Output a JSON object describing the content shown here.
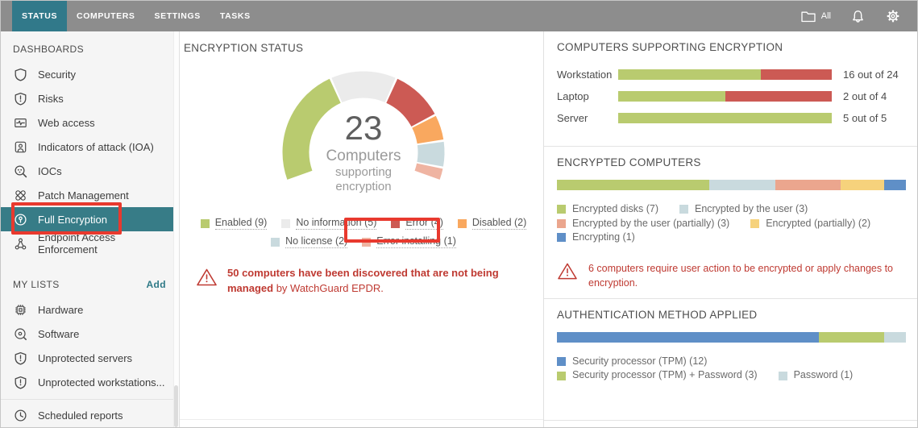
{
  "topbar": {
    "tabs": [
      {
        "label": "STATUS",
        "active": true
      },
      {
        "label": "COMPUTERS",
        "active": false
      },
      {
        "label": "SETTINGS",
        "active": false
      },
      {
        "label": "TASKS",
        "active": false
      }
    ],
    "filter": {
      "icon": "folder",
      "label": "All"
    },
    "notifications_icon": "bell",
    "settings_icon": "gear"
  },
  "sidebar": {
    "sections": [
      {
        "header": "DASHBOARDS",
        "items": [
          {
            "label": "Security",
            "icon": "shield"
          },
          {
            "label": "Risks",
            "icon": "shield-exclamation"
          },
          {
            "label": "Web access",
            "icon": "monitor-pulse"
          },
          {
            "label": "Indicators of attack (IOA)",
            "icon": "person-badge"
          },
          {
            "label": "IOCs",
            "icon": "magnifier-dots"
          },
          {
            "label": "Patch Management",
            "icon": "crossed-bandages"
          },
          {
            "label": "Full Encryption",
            "icon": "disk-lock",
            "selected": true
          },
          {
            "label": "Endpoint Access Enforcement",
            "icon": "network-nodes"
          }
        ]
      },
      {
        "header": "MY LISTS",
        "action": "Add",
        "items": [
          {
            "label": "Hardware",
            "icon": "cpu-chip"
          },
          {
            "label": "Software",
            "icon": "disc"
          },
          {
            "label": "Unprotected servers",
            "icon": "shield-exclamation"
          },
          {
            "label": "Unprotected workstations...",
            "icon": "shield-exclamation"
          },
          {
            "label": "Scheduled reports",
            "icon": "clock"
          }
        ]
      }
    ]
  },
  "panels": {
    "encryption_status": {
      "title": "ENCRYPTION STATUS",
      "warning": {
        "bold": "50 computers have been discovered that are not being managed",
        "rest": " by WatchGuard EPDR."
      }
    },
    "computers_supporting": {
      "title": "COMPUTERS SUPPORTING ENCRYPTION"
    },
    "encrypted_computers": {
      "title": "ENCRYPTED COMPUTERS",
      "warning": "6 computers require user action to be encrypted or apply changes to encryption."
    },
    "auth_method": {
      "title": "AUTHENTICATION METHOD APPLIED"
    }
  },
  "chart_data": [
    {
      "type": "donut",
      "title": "ENCRYPTION STATUS",
      "center_value": "23",
      "center_label": [
        "Computers",
        "supporting",
        "encryption"
      ],
      "total": 23,
      "start_angle": 249.5,
      "sweep": 221,
      "segments": [
        {
          "label": "Enabled",
          "value": 9,
          "display": "Enabled (9)",
          "color": "#b9cb6f"
        },
        {
          "label": "No information",
          "value": 5,
          "display": "No information (5)",
          "color": "#ebebeb"
        },
        {
          "label": "Error",
          "value": 4,
          "display": "Error (4)",
          "color": "#cc5a54"
        },
        {
          "label": "Disabled",
          "value": 2,
          "display": "Disabled (2)",
          "color": "#f9a85f"
        },
        {
          "label": "No license",
          "value": 2,
          "display": "No license (2)",
          "color": "#c9dade"
        },
        {
          "label": "Error installing",
          "value": 1,
          "display": "Error installing (1)",
          "color": "#efb4a2"
        }
      ]
    },
    {
      "type": "bar",
      "title": "COMPUTERS SUPPORTING ENCRYPTION",
      "rows": [
        {
          "label": "Workstation",
          "value": 16,
          "total": 24,
          "display": "16 out of 24"
        },
        {
          "label": "Laptop",
          "value": 2,
          "total": 4,
          "display": "2 out of 4"
        },
        {
          "label": "Server",
          "value": 5,
          "total": 5,
          "display": "5 out of 5"
        }
      ],
      "colors": {
        "supported": "#b9cb6f",
        "not_supported": "#cc5a54"
      }
    },
    {
      "type": "stacked-bar",
      "title": "ENCRYPTED COMPUTERS",
      "total": 16,
      "segments": [
        {
          "label": "Encrypted disks",
          "value": 7,
          "display": "Encrypted disks (7)",
          "color": "#b9cb6f"
        },
        {
          "label": "Encrypted by the user",
          "value": 3,
          "display": "Encrypted by the user (3)",
          "color": "#c9dade"
        },
        {
          "label": "Encrypted by the user (partially)",
          "value": 3,
          "display": "Encrypted by the user (partially) (3)",
          "color": "#eba68e"
        },
        {
          "label": "Encrypted (partially)",
          "value": 2,
          "display": "Encrypted (partially) (2)",
          "color": "#f6d27c"
        },
        {
          "label": "Encrypting",
          "value": 1,
          "display": "Encrypting (1)",
          "color": "#5f8fc7"
        }
      ]
    },
    {
      "type": "stacked-bar",
      "title": "AUTHENTICATION METHOD APPLIED",
      "total": 16,
      "segments": [
        {
          "label": "Security processor (TPM)",
          "value": 12,
          "display": "Security processor (TPM) (12)",
          "color": "#5f8fc7"
        },
        {
          "label": "Security processor (TPM) + Password",
          "value": 3,
          "display": "Security processor (TPM) + Password (3)",
          "color": "#b9cb6f"
        },
        {
          "label": "Password",
          "value": 1,
          "display": "Password (1)",
          "color": "#c9dade"
        }
      ]
    }
  ],
  "annotations": {
    "color": "#e8392e"
  },
  "colors": {
    "accent_teal": "#31798a",
    "selected_row_teal": "#377c87",
    "topbar_gray": "#8d8d8d",
    "warning_red": "#bf3a32",
    "sidebar_bg": "#f5f5f5"
  }
}
